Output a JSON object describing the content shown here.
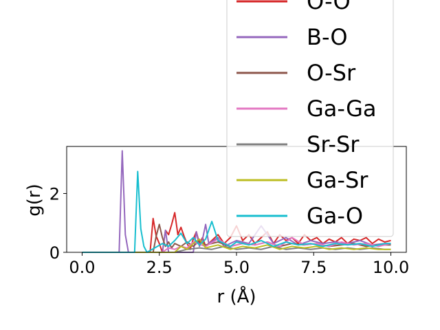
{
  "chart_data": {
    "type": "line",
    "xlabel": "r (Å)",
    "ylabel": "g(r)",
    "xlim": [
      -0.5,
      10.5
    ],
    "ylim": [
      0,
      3.6
    ],
    "xticks": [
      0.0,
      2.5,
      5.0,
      7.5,
      10.0
    ],
    "xtick_labels": [
      "0.0",
      "2.5",
      "5.0",
      "7.5",
      "10.0"
    ],
    "yticks": [
      0,
      2
    ],
    "ytick_labels": [
      "0",
      "2"
    ],
    "grid": false,
    "legend_position": "upper-right (overflowing above the plot area)",
    "series": [
      {
        "name": "O-O",
        "color": "#d62728",
        "x": [
          0.0,
          2.2,
          2.3,
          2.4,
          2.5,
          2.6,
          2.7,
          2.8,
          2.9,
          3.0,
          3.1,
          3.2,
          3.3,
          3.4,
          3.5,
          3.6,
          3.7,
          3.8,
          3.9,
          4.0,
          4.2,
          4.4,
          4.6,
          4.8,
          5.0,
          5.2,
          5.4,
          5.6,
          5.8,
          6.0,
          6.2,
          6.4,
          6.6,
          6.8,
          7.0,
          7.2,
          7.4,
          7.6,
          7.8,
          8.0,
          8.2,
          8.4,
          8.6,
          8.8,
          9.0,
          9.2,
          9.4,
          9.6,
          9.8,
          10.0
        ],
        "y": [
          0.0,
          0.0,
          1.15,
          0.55,
          0.3,
          0.0,
          0.75,
          0.6,
          0.95,
          1.35,
          0.6,
          0.85,
          0.55,
          0.3,
          0.1,
          0.45,
          0.7,
          0.3,
          0.5,
          0.2,
          0.4,
          0.6,
          0.3,
          0.5,
          0.9,
          0.4,
          0.6,
          0.3,
          0.5,
          0.7,
          0.3,
          0.6,
          0.4,
          0.5,
          0.3,
          0.6,
          0.4,
          0.5,
          0.3,
          0.45,
          0.35,
          0.5,
          0.3,
          0.45,
          0.4,
          0.5,
          0.3,
          0.45,
          0.35,
          0.4
        ]
      },
      {
        "name": "B-O",
        "color": "#9467bd",
        "x": [
          0.0,
          1.2,
          1.3,
          1.35,
          1.4,
          1.5,
          2.6,
          2.7,
          2.8,
          3.6,
          3.7,
          3.8,
          3.9,
          4.0,
          4.1,
          4.4,
          4.6,
          5.0,
          5.4,
          5.8,
          6.2,
          6.6,
          7.0,
          7.4,
          7.8,
          8.2,
          8.6,
          9.0,
          9.4,
          9.8,
          10.0
        ],
        "y": [
          0.0,
          0.0,
          3.45,
          2.0,
          0.6,
          0.0,
          0.0,
          0.75,
          0.0,
          0.0,
          0.7,
          0.2,
          0.45,
          0.95,
          0.3,
          0.5,
          0.2,
          0.4,
          0.3,
          0.9,
          0.3,
          0.5,
          0.25,
          0.4,
          0.3,
          0.35,
          0.3,
          0.4,
          0.25,
          0.3,
          0.3
        ]
      },
      {
        "name": "O-Sr",
        "color": "#8c564b",
        "x": [
          0.0,
          2.3,
          2.4,
          2.5,
          2.6,
          2.7,
          2.8,
          2.9,
          3.0,
          3.2,
          3.4,
          3.6,
          3.8,
          4.0,
          4.4,
          4.8,
          5.2,
          5.6,
          6.0,
          6.4,
          6.8,
          7.2,
          7.6,
          8.0,
          8.4,
          8.8,
          9.2,
          9.6,
          10.0
        ],
        "y": [
          0.0,
          0.0,
          0.55,
          0.95,
          0.5,
          0.2,
          0.35,
          0.15,
          0.3,
          0.2,
          0.35,
          0.2,
          0.4,
          0.25,
          0.35,
          0.2,
          0.3,
          0.25,
          0.35,
          0.2,
          0.3,
          0.25,
          0.3,
          0.2,
          0.25,
          0.3,
          0.2,
          0.25,
          0.25
        ]
      },
      {
        "name": "Ga-Ga",
        "color": "#e377c2",
        "x": [
          0.0,
          2.6,
          2.8,
          3.0,
          3.2,
          3.4,
          3.6,
          4.0,
          4.4,
          4.8,
          5.2,
          5.6,
          6.0,
          6.4,
          6.8,
          7.2,
          7.6,
          8.0,
          8.4,
          8.8,
          9.2,
          9.6,
          10.0
        ],
        "y": [
          0.0,
          0.0,
          0.15,
          0.1,
          0.2,
          0.15,
          0.35,
          0.2,
          0.45,
          0.2,
          0.3,
          0.25,
          0.35,
          0.2,
          0.5,
          0.25,
          0.3,
          0.2,
          0.35,
          0.25,
          0.3,
          0.2,
          0.3
        ]
      },
      {
        "name": "Sr-Sr",
        "color": "#7f7f7f",
        "x": [
          0.0,
          3.0,
          3.4,
          3.8,
          4.2,
          4.6,
          5.0,
          5.4,
          5.8,
          6.2,
          6.6,
          7.0,
          7.4,
          7.8,
          8.2,
          8.6,
          9.0,
          9.4,
          9.8,
          10.0
        ],
        "y": [
          0.0,
          0.0,
          0.1,
          0.15,
          0.1,
          0.2,
          0.1,
          0.15,
          0.1,
          0.2,
          0.1,
          0.15,
          0.1,
          0.15,
          0.1,
          0.15,
          0.1,
          0.15,
          0.1,
          0.1
        ]
      },
      {
        "name": "Ga-Sr",
        "color": "#bcbd22",
        "x": [
          0.0,
          3.0,
          3.2,
          3.4,
          3.6,
          3.8,
          4.0,
          4.4,
          4.8,
          5.2,
          5.6,
          6.0,
          6.4,
          6.8,
          7.2,
          7.6,
          8.0,
          8.4,
          8.8,
          9.2,
          9.6,
          10.0
        ],
        "y": [
          0.0,
          0.0,
          0.2,
          0.1,
          0.3,
          0.45,
          0.15,
          0.25,
          0.1,
          0.2,
          0.15,
          0.25,
          0.1,
          0.2,
          0.15,
          0.2,
          0.1,
          0.15,
          0.1,
          0.15,
          0.1,
          0.1
        ]
      },
      {
        "name": "Ga-O",
        "color": "#17becf",
        "x": [
          0.0,
          1.7,
          1.8,
          1.9,
          2.0,
          2.1,
          2.6,
          2.8,
          3.0,
          3.2,
          3.4,
          3.6,
          3.8,
          4.0,
          4.2,
          4.4,
          4.6,
          4.8,
          5.0,
          5.4,
          5.8,
          6.2,
          6.6,
          7.0,
          7.4,
          7.8,
          8.2,
          8.6,
          9.0,
          9.4,
          9.8,
          10.0
        ],
        "y": [
          0.0,
          0.0,
          2.75,
          0.8,
          0.2,
          0.0,
          0.3,
          0.2,
          0.4,
          0.65,
          0.3,
          0.5,
          0.25,
          0.45,
          1.05,
          0.4,
          0.3,
          0.2,
          0.35,
          0.25,
          0.4,
          0.2,
          0.35,
          0.25,
          0.3,
          0.2,
          0.3,
          0.25,
          0.3,
          0.2,
          0.3,
          0.3
        ]
      }
    ]
  }
}
